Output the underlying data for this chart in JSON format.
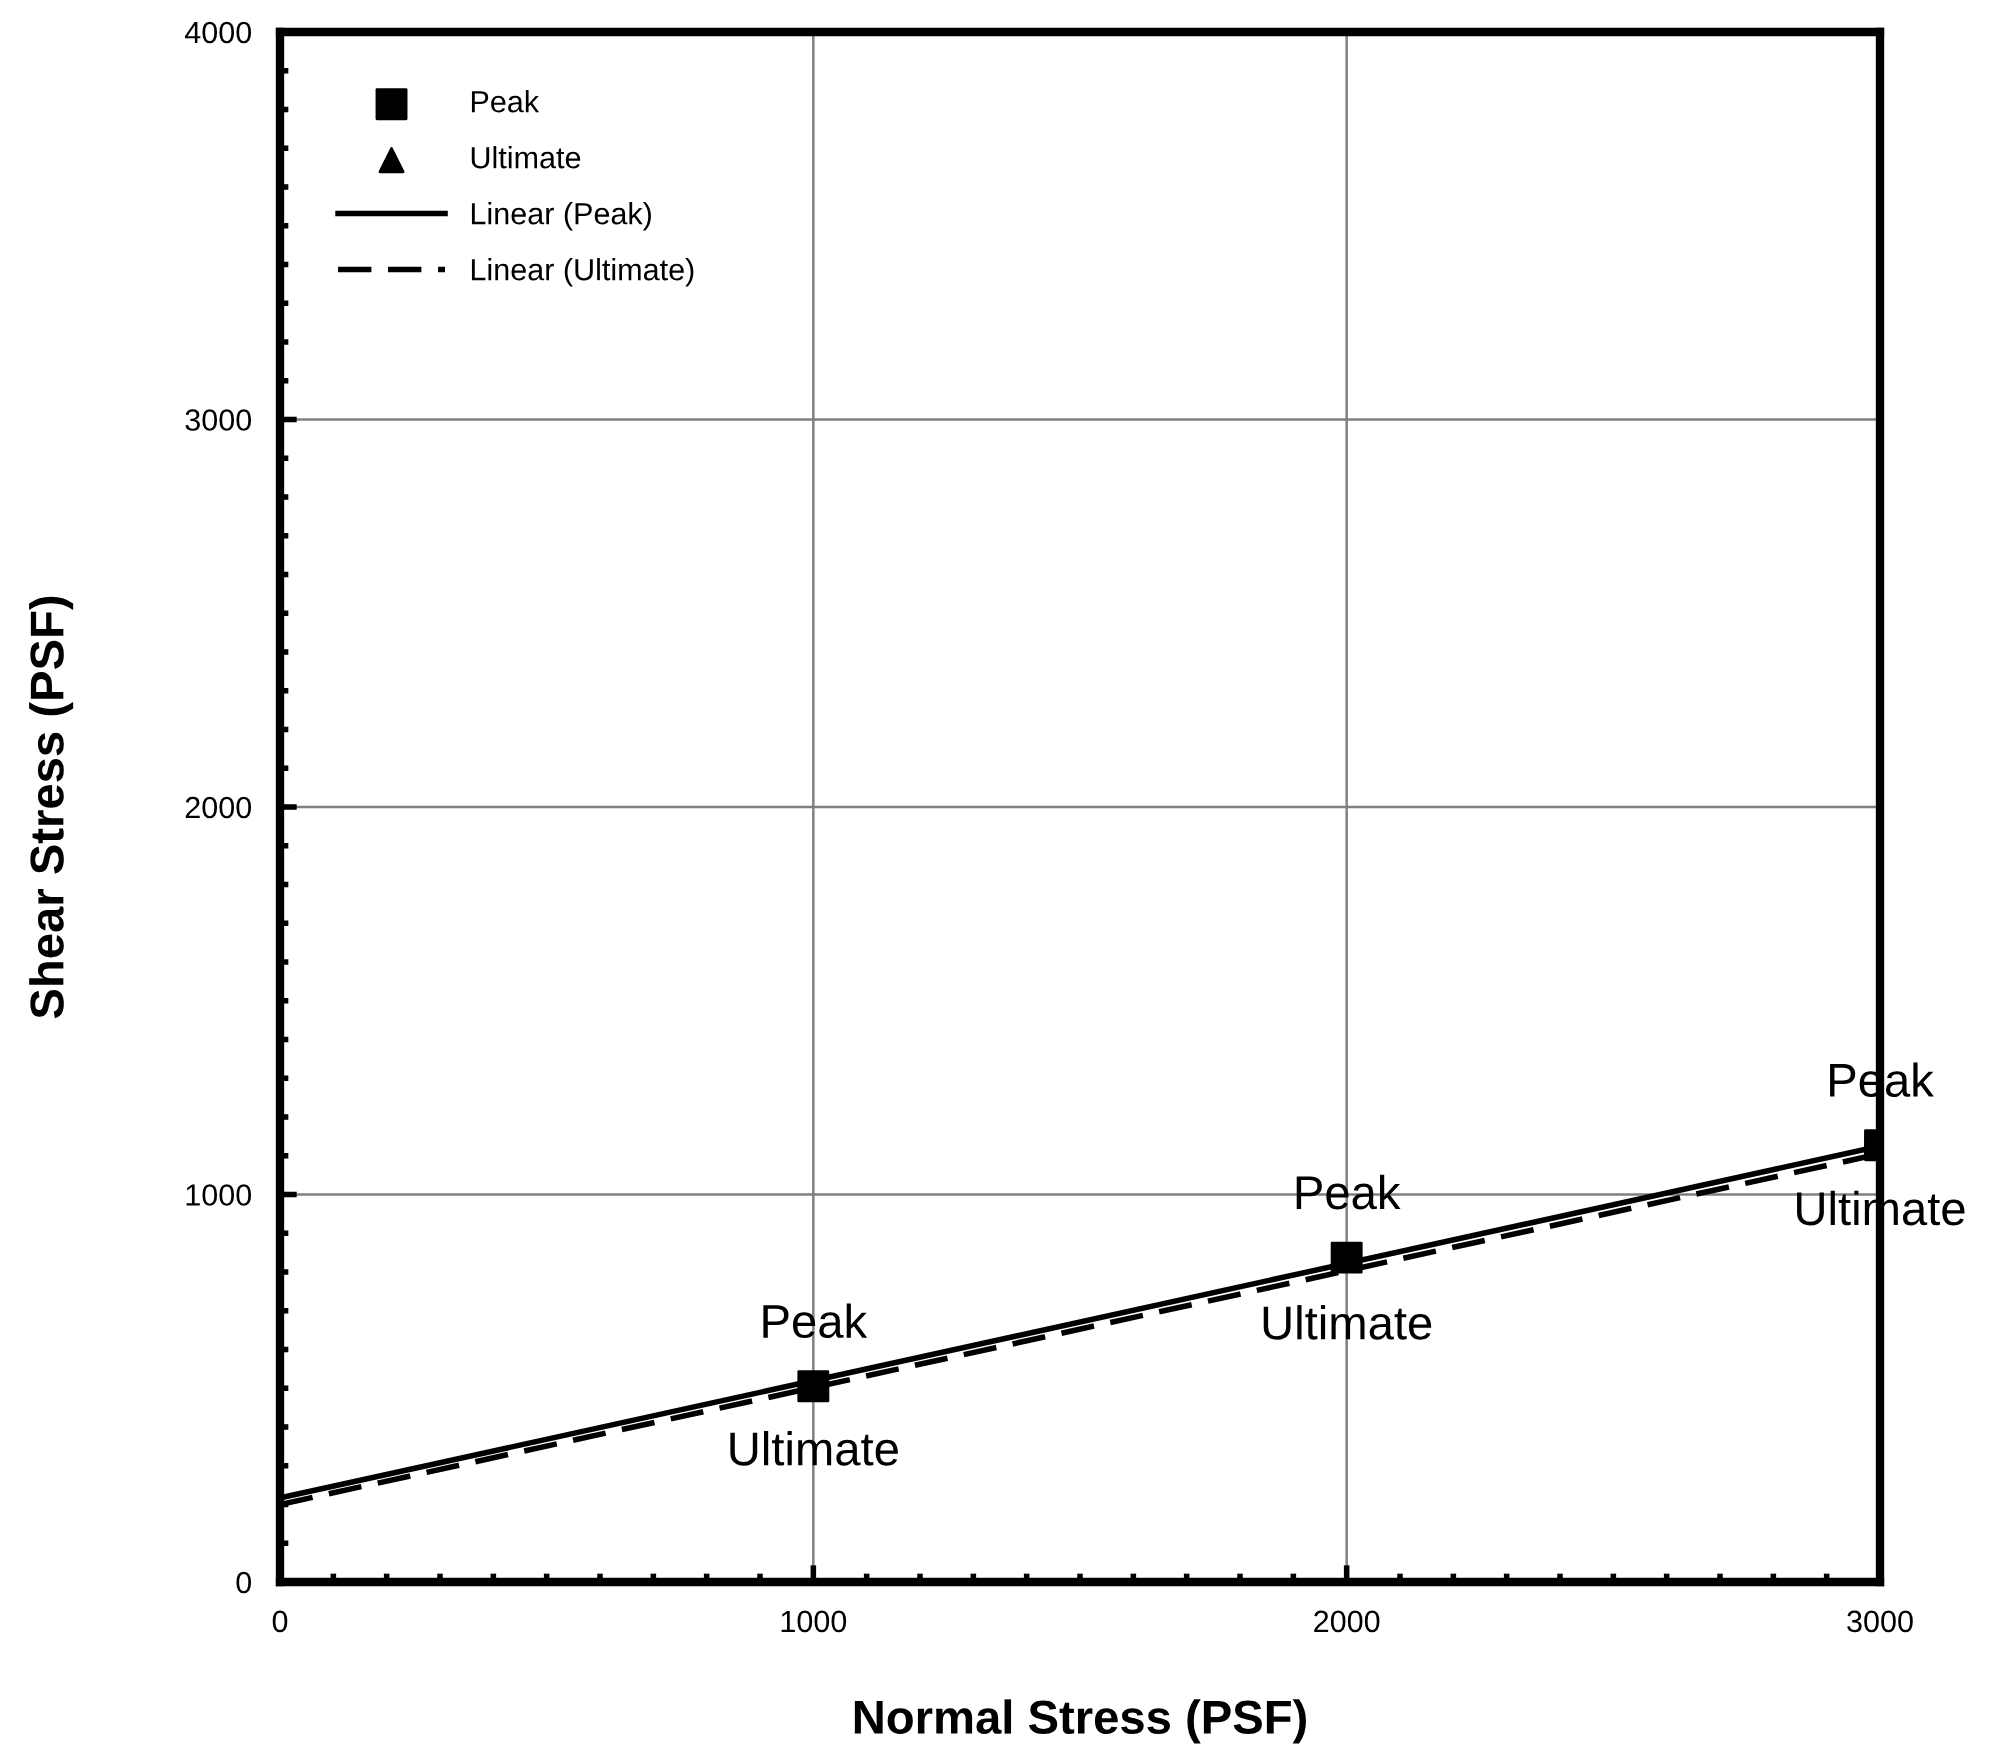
{
  "chart_data": {
    "type": "scatter",
    "xlabel": "Normal Stress (PSF)",
    "ylabel": "Shear Stress (PSF)",
    "xlim": [
      0,
      3000
    ],
    "xticks": [
      0,
      1000,
      2000,
      3000
    ],
    "ylim": [
      0,
      4000
    ],
    "yticks": [
      0,
      1000,
      2000,
      3000,
      4000
    ],
    "grid": true,
    "legend": "top left",
    "series": [
      {
        "name": "Peak",
        "marker": "square",
        "color": "#000000",
        "x": [
          1000,
          2000,
          3000
        ],
        "values": [
          505,
          837,
          1127
        ]
      },
      {
        "name": "Ultimate",
        "marker": "triangle",
        "color": "#000000"
      },
      {
        "name": "Linear (Peak)",
        "type": "line",
        "line_style": "solid",
        "marker": "none",
        "color": "#000000",
        "x": [
          0,
          3000
        ],
        "values": [
          217,
          1125
        ]
      },
      {
        "name": "Linear (Ultimate)",
        "type": "line",
        "line_style": "dashed",
        "marker": "none",
        "color": "#000000",
        "x": [
          0,
          3000
        ],
        "values": [
          200,
          1105
        ]
      }
    ],
    "annotations": [
      {
        "text": "Peak",
        "x": 1000,
        "y": 505
      },
      {
        "text": "Ultimate",
        "x": 1000,
        "y": 490
      },
      {
        "text": "Peak",
        "x": 2000,
        "y": 837
      },
      {
        "text": "Ultimate",
        "x": 2000,
        "y": 815
      },
      {
        "text": "Peak",
        "x": 3000,
        "y": 1127
      },
      {
        "text": "Ultimate",
        "x": 3000,
        "y": 1110
      }
    ]
  }
}
